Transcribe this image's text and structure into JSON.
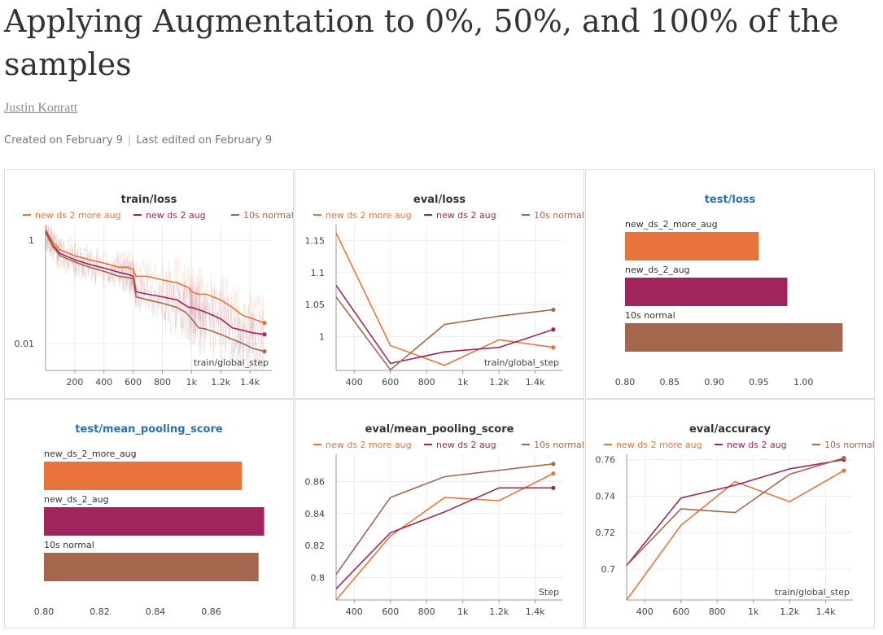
{
  "report": {
    "title": "Applying Augmentation to 0%, 50%, and 100% of the samples",
    "author": "Justin Konratt",
    "created": "Created on February 9",
    "edited": "Last edited on February 9"
  },
  "colors": {
    "more_aug": "#e8743b",
    "aug": "#a0255f",
    "normal": "#a5664e",
    "title_blue": "#2a6fb8",
    "grid": "#ececec",
    "axis": "#999999"
  },
  "chart_data": [
    {
      "id": "train-loss",
      "type": "line",
      "title": "train/loss",
      "title_color": "dark",
      "legend": [
        "new_ds_2_more_aug",
        "new_ds_2_aug",
        "10s normal"
      ],
      "legend_display": [
        "new ds 2 more aug",
        "new ds 2 aug",
        "10s normal"
      ],
      "xlabel": "train/global_step",
      "xlim": [
        0,
        1550
      ],
      "xticks": [
        200,
        400,
        600,
        800,
        1000,
        1200,
        1400
      ],
      "xtick_labels": [
        "200",
        "400",
        "600",
        "800",
        "1k",
        "1.2k",
        "1.4k"
      ],
      "ylog": true,
      "ylim": [
        0.003,
        2
      ],
      "yticks": [
        1,
        0.01
      ],
      "ytick_labels": [
        "1",
        "0.01"
      ],
      "series": [
        {
          "name": "new_ds_2_more_aug",
          "x": [
            0,
            50,
            100,
            200,
            300,
            400,
            500,
            560,
            600,
            620,
            700,
            800,
            900,
            980,
            1000,
            1050,
            1100,
            1200,
            1280,
            1350,
            1420,
            1500
          ],
          "y": [
            1.6,
            0.9,
            0.65,
            0.5,
            0.42,
            0.36,
            0.3,
            0.3,
            0.27,
            0.2,
            0.2,
            0.17,
            0.15,
            0.12,
            0.1,
            0.09,
            0.09,
            0.07,
            0.05,
            0.035,
            0.03,
            0.025
          ]
        },
        {
          "name": "new_ds_2_aug",
          "x": [
            0,
            50,
            100,
            200,
            300,
            400,
            500,
            560,
            600,
            620,
            700,
            800,
            900,
            980,
            1000,
            1050,
            1100,
            1200,
            1280,
            1350,
            1420,
            1500
          ],
          "y": [
            1.5,
            0.8,
            0.55,
            0.42,
            0.34,
            0.29,
            0.24,
            0.22,
            0.2,
            0.1,
            0.09,
            0.08,
            0.07,
            0.05,
            0.05,
            0.045,
            0.04,
            0.03,
            0.02,
            0.018,
            0.016,
            0.015
          ]
        },
        {
          "name": "10s normal",
          "x": [
            0,
            50,
            100,
            200,
            300,
            400,
            500,
            560,
            600,
            620,
            700,
            800,
            900,
            960,
            1000,
            1050,
            1100,
            1200,
            1280,
            1350,
            1420,
            1500
          ],
          "y": [
            1.4,
            0.75,
            0.5,
            0.38,
            0.3,
            0.25,
            0.2,
            0.19,
            0.18,
            0.08,
            0.07,
            0.06,
            0.05,
            0.04,
            0.03,
            0.02,
            0.019,
            0.015,
            0.012,
            0.01,
            0.008,
            0.007
          ]
        }
      ]
    },
    {
      "id": "eval-loss",
      "type": "line",
      "title": "eval/loss",
      "title_color": "dark",
      "legend": [
        "new_ds_2_more_aug",
        "new_ds_2_aug",
        "10s normal"
      ],
      "legend_display": [
        "new ds 2 more aug",
        "new ds 2 aug",
        "10s normal"
      ],
      "xlabel": "train/global_step",
      "xlim": [
        300,
        1550
      ],
      "xticks": [
        400,
        600,
        800,
        1000,
        1200,
        1400
      ],
      "xtick_labels": [
        "400",
        "600",
        "800",
        "1k",
        "1.2k",
        "1.4k"
      ],
      "ylim": [
        0.947,
        1.175
      ],
      "yticks": [
        1.15,
        1.1,
        1.05,
        1
      ],
      "ytick_labels": [
        "1.15",
        "1.1",
        "1.05",
        "1"
      ],
      "series": [
        {
          "name": "new_ds_2_more_aug",
          "x": [
            300,
            600,
            900,
            1200,
            1500
          ],
          "y": [
            1.162,
            0.986,
            0.955,
            0.995,
            0.983
          ]
        },
        {
          "name": "new_ds_2_aug",
          "x": [
            300,
            600,
            900,
            1200,
            1500
          ],
          "y": [
            1.08,
            0.958,
            0.976,
            0.983,
            1.011
          ]
        },
        {
          "name": "10s normal",
          "x": [
            300,
            600,
            900,
            1200,
            1500
          ],
          "y": [
            1.062,
            0.948,
            1.019,
            1.032,
            1.042
          ]
        }
      ]
    },
    {
      "id": "test-loss",
      "type": "bar",
      "orientation": "horizontal",
      "title": "test/loss",
      "title_color": "blue",
      "categories": [
        "new_ds_2_more_aug",
        "new_ds_2_aug",
        "10s normal"
      ],
      "values": [
        0.95,
        0.982,
        1.044
      ],
      "xlim": [
        0.8,
        1.05
      ],
      "xticks": [
        0.8,
        0.85,
        0.9,
        0.95,
        1.0
      ],
      "xtick_labels": [
        "0.80",
        "0.85",
        "0.90",
        "0.95",
        "1.00"
      ]
    },
    {
      "id": "test-mean-pooling",
      "type": "bar",
      "orientation": "horizontal",
      "title": "test/mean_pooling_score",
      "title_color": "blue",
      "categories": [
        "new_ds_2_more_aug",
        "new_ds_2_aug",
        "10s normal"
      ],
      "values": [
        0.871,
        0.879,
        0.877
      ],
      "xlim": [
        0.8,
        0.88
      ],
      "xticks": [
        0.8,
        0.82,
        0.84,
        0.86
      ],
      "xtick_labels": [
        "0.80",
        "0.82",
        "0.84",
        "0.86"
      ]
    },
    {
      "id": "eval-mean-pooling",
      "type": "line",
      "title": "eval/mean_pooling_score",
      "title_color": "dark",
      "legend": [
        "new_ds_2_more_aug",
        "new_ds_2_aug",
        "10s normal"
      ],
      "legend_display": [
        "new ds 2 more aug",
        "new ds 2 aug",
        "10s normal"
      ],
      "xlabel": "Step",
      "xlim": [
        300,
        1550
      ],
      "xticks": [
        400,
        600,
        800,
        1000,
        1200,
        1400
      ],
      "xtick_labels": [
        "400",
        "600",
        "800",
        "1k",
        "1.2k",
        "1.4k"
      ],
      "ylim": [
        0.786,
        0.877
      ],
      "yticks": [
        0.86,
        0.84,
        0.82,
        0.8
      ],
      "ytick_labels": [
        "0.86",
        "0.84",
        "0.82",
        "0.8"
      ],
      "series": [
        {
          "name": "new_ds_2_more_aug",
          "x": [
            300,
            600,
            900,
            1200,
            1500
          ],
          "y": [
            0.786,
            0.826,
            0.85,
            0.848,
            0.865
          ]
        },
        {
          "name": "new_ds_2_aug",
          "x": [
            300,
            600,
            900,
            1200,
            1500
          ],
          "y": [
            0.793,
            0.828,
            0.841,
            0.856,
            0.856
          ]
        },
        {
          "name": "10s normal",
          "x": [
            300,
            600,
            900,
            1200,
            1500
          ],
          "y": [
            0.802,
            0.85,
            0.863,
            0.867,
            0.871
          ]
        }
      ]
    },
    {
      "id": "eval-accuracy",
      "type": "line",
      "title": "eval/accuracy",
      "title_color": "dark",
      "legend": [
        "new_ds_2_more_aug",
        "new_ds_2_aug",
        "10s normal"
      ],
      "legend_display": [
        "new ds 2 more aug",
        "new ds 2 aug",
        "10s normal"
      ],
      "xlabel": "train/global_step",
      "xlim": [
        300,
        1550
      ],
      "xticks": [
        400,
        600,
        800,
        1000,
        1200,
        1400
      ],
      "xtick_labels": [
        "400",
        "600",
        "800",
        "1k",
        "1.2k",
        "1.4k"
      ],
      "ylim": [
        0.683,
        0.763
      ],
      "yticks": [
        0.76,
        0.74,
        0.72,
        0.7
      ],
      "ytick_labels": [
        "0.76",
        "0.74",
        "0.72",
        "0.7"
      ],
      "series": [
        {
          "name": "new_ds_2_more_aug",
          "x": [
            300,
            600,
            900,
            1200,
            1500
          ],
          "y": [
            0.683,
            0.724,
            0.748,
            0.737,
            0.754
          ]
        },
        {
          "name": "new_ds_2_aug",
          "x": [
            300,
            600,
            900,
            1200,
            1500
          ],
          "y": [
            0.702,
            0.739,
            0.746,
            0.755,
            0.76
          ]
        },
        {
          "name": "10s normal",
          "x": [
            300,
            600,
            900,
            1200,
            1500
          ],
          "y": [
            0.702,
            0.733,
            0.731,
            0.752,
            0.761
          ]
        }
      ]
    }
  ]
}
